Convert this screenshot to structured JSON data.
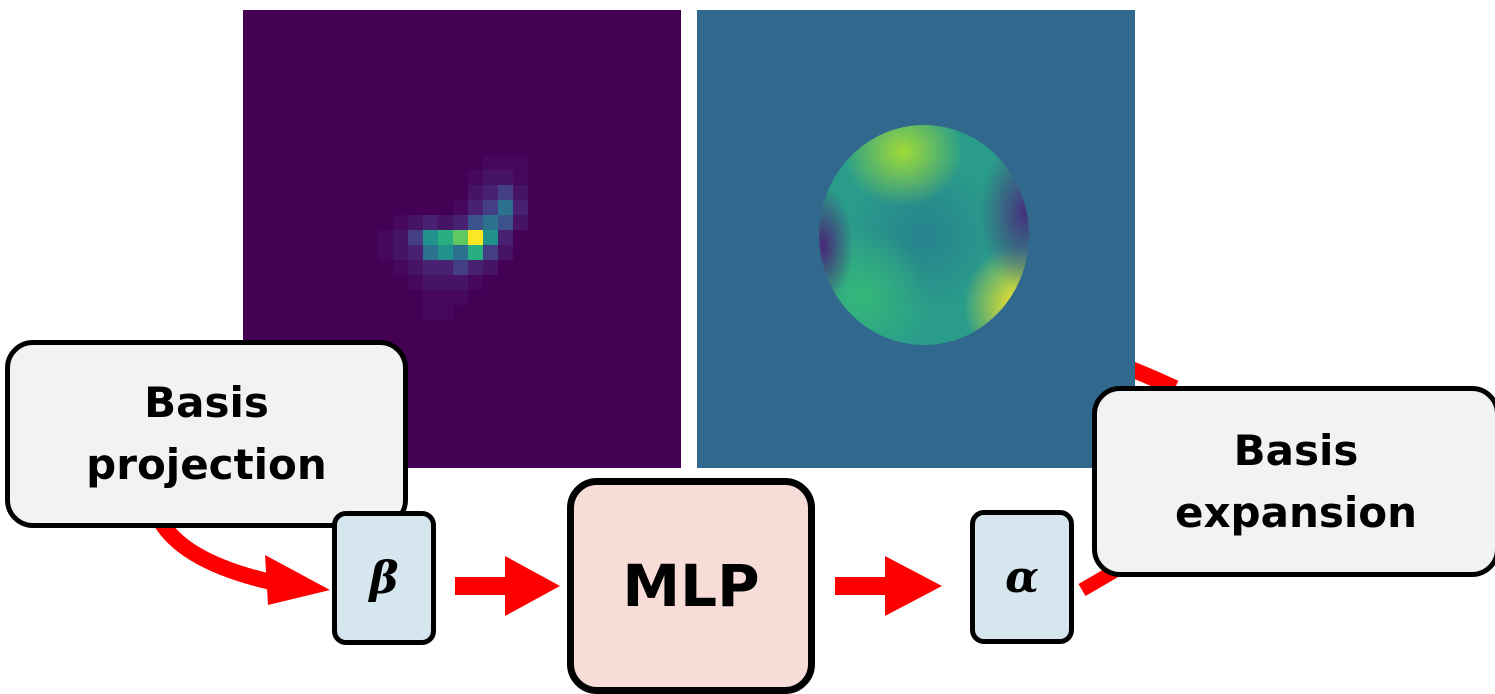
{
  "diagram": {
    "psf_image": {
      "colormap": "viridis",
      "background": "#440154"
    },
    "phase_image": {
      "colormap": "viridis",
      "background": "#31688e"
    },
    "projection_label": [
      "Basis",
      "projection"
    ],
    "expansion_label": [
      "Basis",
      "expansion"
    ],
    "beta_symbol": "β",
    "alpha_symbol": "α",
    "mlp_label": "MLP",
    "arrow_color": "#ff0000"
  }
}
